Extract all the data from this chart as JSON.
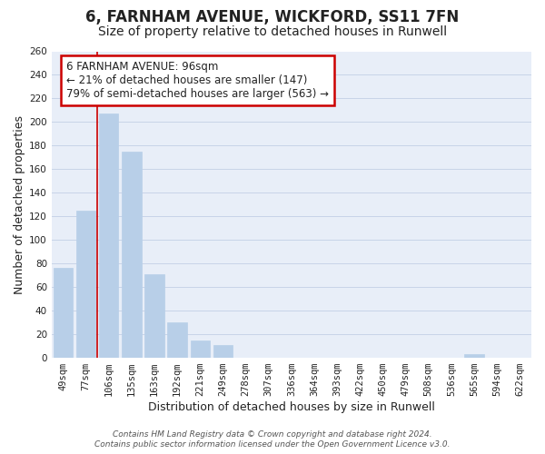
{
  "title": "6, FARNHAM AVENUE, WICKFORD, SS11 7FN",
  "subtitle": "Size of property relative to detached houses in Runwell",
  "xlabel": "Distribution of detached houses by size in Runwell",
  "ylabel": "Number of detached properties",
  "footer_line1": "Contains HM Land Registry data © Crown copyright and database right 2024.",
  "footer_line2": "Contains public sector information licensed under the Open Government Licence v3.0.",
  "bar_labels": [
    "49sqm",
    "77sqm",
    "106sqm",
    "135sqm",
    "163sqm",
    "192sqm",
    "221sqm",
    "249sqm",
    "278sqm",
    "307sqm",
    "336sqm",
    "364sqm",
    "393sqm",
    "422sqm",
    "450sqm",
    "479sqm",
    "508sqm",
    "536sqm",
    "565sqm",
    "594sqm",
    "622sqm"
  ],
  "bar_values": [
    76,
    125,
    207,
    175,
    71,
    30,
    15,
    11,
    0,
    0,
    0,
    0,
    0,
    0,
    0,
    0,
    0,
    0,
    3,
    0,
    0
  ],
  "bar_color": "#b8cfe8",
  "bar_edge_color": "#b8cfe8",
  "annotation_title": "6 FARNHAM AVENUE: 96sqm",
  "annotation_line1": "← 21% of detached houses are smaller (147)",
  "annotation_line2": "79% of semi-detached houses are larger (563) →",
  "annotation_box_facecolor": "#ffffff",
  "annotation_box_edgecolor": "#cc0000",
  "red_line_color": "#cc0000",
  "red_line_x": 1.5,
  "ylim": [
    0,
    260
  ],
  "yticks": [
    0,
    20,
    40,
    60,
    80,
    100,
    120,
    140,
    160,
    180,
    200,
    220,
    240,
    260
  ],
  "grid_color": "#c8d4e8",
  "fig_background_color": "#ffffff",
  "plot_background_color": "#e8eef8",
  "title_fontsize": 12,
  "subtitle_fontsize": 10,
  "axis_label_fontsize": 9,
  "tick_fontsize": 7.5,
  "footer_fontsize": 6.5,
  "annotation_fontsize": 8.5
}
